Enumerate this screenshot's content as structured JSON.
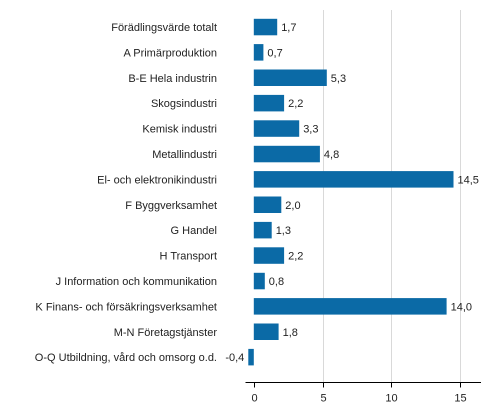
{
  "chart_data": {
    "type": "bar",
    "orientation": "horizontal",
    "title": "",
    "xlabel": "",
    "ylabel": "",
    "categories": [
      "Förädlingsvärde totalt",
      "A Primärproduktion",
      "B-E Hela industrin",
      "Skogsindustri",
      "Kemisk industri",
      "Metallindustri",
      "El- och elektronikindustri",
      "F Byggverksamhet",
      "G Handel",
      "H Transport",
      "J Information och kommunikation",
      "K Finans- och försäkringsverksamhet",
      "M-N Företagstjänster",
      "O-Q Utbildning, vård och omsorg o.d."
    ],
    "values": [
      1.7,
      0.7,
      5.3,
      2.2,
      3.3,
      4.8,
      14.5,
      2.0,
      1.3,
      2.2,
      0.8,
      14.0,
      1.8,
      -0.4
    ],
    "value_labels": [
      "1,7",
      "0,7",
      "5,3",
      "2,2",
      "3,3",
      "4,8",
      "14,5",
      "2,0",
      "1,3",
      "2,2",
      "0,8",
      "14,0",
      "1,8",
      "-0,4"
    ],
    "xlim": [
      -0.6,
      16.5
    ],
    "xticks": [
      0,
      5,
      10,
      15
    ],
    "xtick_labels": [
      "0",
      "5",
      "10",
      "15"
    ],
    "grid": "vertical",
    "legend": "none",
    "bar_color": "#0b6aa6"
  }
}
